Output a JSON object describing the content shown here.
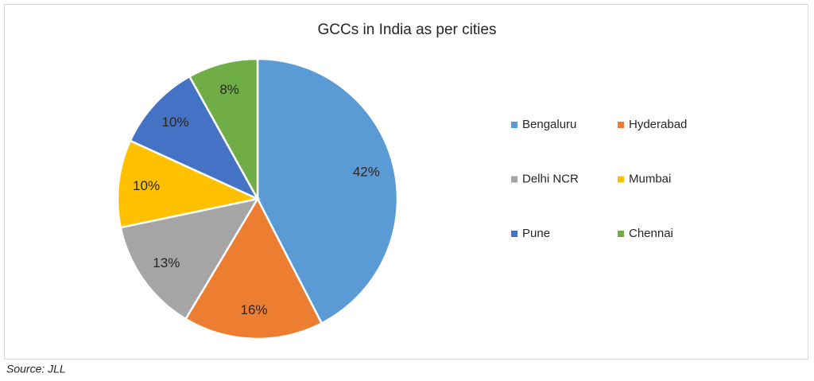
{
  "chart_data": {
    "type": "pie",
    "title": "GCCs in India as per cities",
    "categories": [
      "Bengaluru",
      "Hyderabad",
      "Delhi NCR",
      "Mumbai",
      "Pune",
      "Chennai"
    ],
    "values": [
      42,
      16,
      13,
      10,
      10,
      8
    ],
    "value_labels": [
      "42%",
      "16%",
      "13%",
      "10%",
      "10%",
      "8%"
    ],
    "colors": [
      "#5b9bd5",
      "#ed7d31",
      "#a5a5a5",
      "#ffc000",
      "#4472c4",
      "#70ad47"
    ],
    "legend": "right"
  },
  "source": "Source: JLL"
}
